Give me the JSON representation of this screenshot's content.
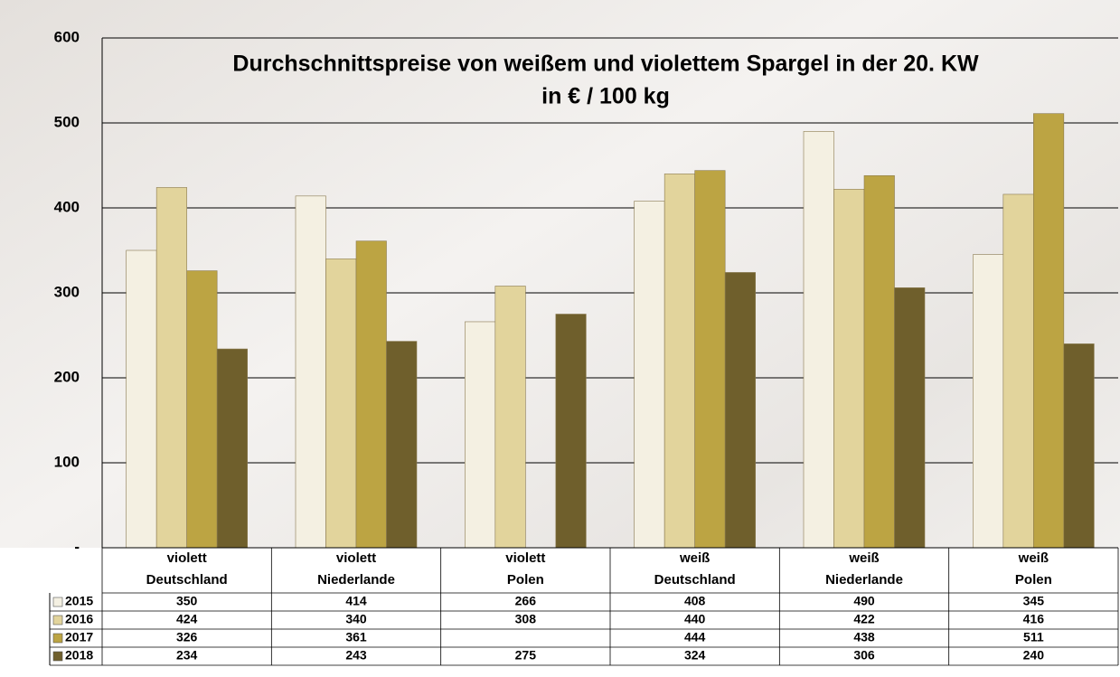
{
  "chart_data": {
    "type": "bar",
    "title": [
      "Durchschnittspreise von weißem und violettem Spargel in der 20. KW",
      "in € / 100 kg"
    ],
    "categories": [
      [
        "violett",
        "Deutschland"
      ],
      [
        "violett",
        "Niederlande"
      ],
      [
        "violett",
        "Polen"
      ],
      [
        "weiß",
        "Deutschland"
      ],
      [
        "weiß",
        "Niederlande"
      ],
      [
        "weiß",
        "Polen"
      ]
    ],
    "series": [
      {
        "name": "2015",
        "color": "#f4f0e2",
        "values": [
          350,
          414,
          266,
          408,
          490,
          345
        ]
      },
      {
        "name": "2016",
        "color": "#e2d49c",
        "values": [
          424,
          340,
          308,
          440,
          422,
          416
        ]
      },
      {
        "name": "2017",
        "color": "#bca443",
        "values": [
          326,
          361,
          null,
          444,
          438,
          511
        ]
      },
      {
        "name": "2018",
        "color": "#6f5f2c",
        "values": [
          234,
          243,
          275,
          324,
          306,
          240
        ]
      }
    ],
    "ylim": [
      0,
      600
    ],
    "yticks": [
      {
        "value": 0,
        "label": "-"
      },
      100,
      200,
      300,
      400,
      500,
      600
    ],
    "grid": true
  }
}
